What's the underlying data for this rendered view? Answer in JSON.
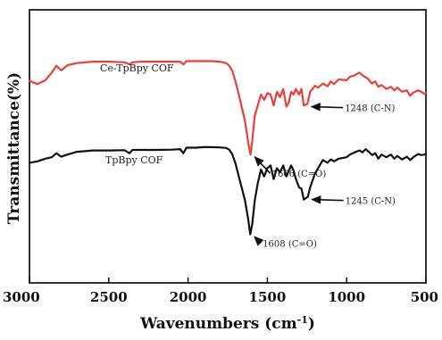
{
  "chart_data": {
    "type": "line",
    "xlabel": "Wavenumbers (cm",
    "xlabel_sup": "-1",
    "xlabel_close": ")",
    "ylabel": "Transmittance(%)",
    "xlim": [
      3000,
      500
    ],
    "x_reversed": true,
    "xticks": [
      3000,
      2500,
      2000,
      1500,
      1000,
      500
    ],
    "y_ticks_shown": false,
    "grid": false,
    "series": [
      {
        "name": "Ce-TpBpy COF",
        "color": "#e8413a",
        "points": [
          [
            3000,
            0.74
          ],
          [
            2950,
            0.728
          ],
          [
            2900,
            0.742
          ],
          [
            2860,
            0.77
          ],
          [
            2830,
            0.795
          ],
          [
            2800,
            0.778
          ],
          [
            2760,
            0.797
          ],
          [
            2700,
            0.805
          ],
          [
            2600,
            0.81
          ],
          [
            2500,
            0.81
          ],
          [
            2400,
            0.808
          ],
          [
            2370,
            0.8
          ],
          [
            2350,
            0.808
          ],
          [
            2300,
            0.81
          ],
          [
            2200,
            0.81
          ],
          [
            2100,
            0.81
          ],
          [
            2050,
            0.81
          ],
          [
            2030,
            0.8
          ],
          [
            2010,
            0.812
          ],
          [
            1950,
            0.812
          ],
          [
            1900,
            0.812
          ],
          [
            1850,
            0.812
          ],
          [
            1800,
            0.81
          ],
          [
            1760,
            0.805
          ],
          [
            1740,
            0.795
          ],
          [
            1720,
            0.775
          ],
          [
            1700,
            0.735
          ],
          [
            1680,
            0.69
          ],
          [
            1660,
            0.64
          ],
          [
            1640,
            0.59
          ],
          [
            1620,
            0.51
          ],
          [
            1606,
            0.47
          ],
          [
            1595,
            0.52
          ],
          [
            1580,
            0.61
          ],
          [
            1560,
            0.65
          ],
          [
            1540,
            0.69
          ],
          [
            1520,
            0.67
          ],
          [
            1500,
            0.695
          ],
          [
            1480,
            0.69
          ],
          [
            1460,
            0.65
          ],
          [
            1440,
            0.7
          ],
          [
            1420,
            0.68
          ],
          [
            1400,
            0.71
          ],
          [
            1380,
            0.645
          ],
          [
            1365,
            0.66
          ],
          [
            1350,
            0.7
          ],
          [
            1335,
            0.69
          ],
          [
            1320,
            0.71
          ],
          [
            1300,
            0.69
          ],
          [
            1285,
            0.71
          ],
          [
            1270,
            0.65
          ],
          [
            1248,
            0.655
          ],
          [
            1230,
            0.7
          ],
          [
            1200,
            0.722
          ],
          [
            1180,
            0.715
          ],
          [
            1150,
            0.73
          ],
          [
            1120,
            0.72
          ],
          [
            1100,
            0.738
          ],
          [
            1080,
            0.728
          ],
          [
            1050,
            0.745
          ],
          [
            1000,
            0.742
          ],
          [
            980,
            0.755
          ],
          [
            950,
            0.76
          ],
          [
            920,
            0.77
          ],
          [
            900,
            0.76
          ],
          [
            870,
            0.75
          ],
          [
            840,
            0.73
          ],
          [
            820,
            0.738
          ],
          [
            800,
            0.718
          ],
          [
            780,
            0.725
          ],
          [
            750,
            0.71
          ],
          [
            720,
            0.718
          ],
          [
            700,
            0.705
          ],
          [
            680,
            0.715
          ],
          [
            650,
            0.7
          ],
          [
            620,
            0.705
          ],
          [
            600,
            0.685
          ],
          [
            580,
            0.697
          ],
          [
            550,
            0.705
          ],
          [
            530,
            0.7
          ],
          [
            510,
            0.692
          ],
          [
            500,
            0.695
          ]
        ]
      },
      {
        "name": "TpBpy COF",
        "color": "#111111",
        "points": [
          [
            3000,
            0.44
          ],
          [
            2950,
            0.445
          ],
          [
            2900,
            0.455
          ],
          [
            2860,
            0.46
          ],
          [
            2830,
            0.475
          ],
          [
            2800,
            0.462
          ],
          [
            2760,
            0.47
          ],
          [
            2700,
            0.48
          ],
          [
            2600,
            0.485
          ],
          [
            2500,
            0.485
          ],
          [
            2400,
            0.486
          ],
          [
            2370,
            0.475
          ],
          [
            2350,
            0.487
          ],
          [
            2300,
            0.487
          ],
          [
            2200,
            0.487
          ],
          [
            2100,
            0.488
          ],
          [
            2050,
            0.49
          ],
          [
            2030,
            0.475
          ],
          [
            2010,
            0.495
          ],
          [
            1950,
            0.495
          ],
          [
            1900,
            0.497
          ],
          [
            1850,
            0.497
          ],
          [
            1800,
            0.496
          ],
          [
            1760,
            0.494
          ],
          [
            1740,
            0.488
          ],
          [
            1720,
            0.47
          ],
          [
            1700,
            0.435
          ],
          [
            1680,
            0.39
          ],
          [
            1660,
            0.345
          ],
          [
            1640,
            0.3
          ],
          [
            1620,
            0.23
          ],
          [
            1608,
            0.178
          ],
          [
            1595,
            0.215
          ],
          [
            1580,
            0.3
          ],
          [
            1560,
            0.365
          ],
          [
            1540,
            0.415
          ],
          [
            1520,
            0.39
          ],
          [
            1500,
            0.42
          ],
          [
            1480,
            0.43
          ],
          [
            1460,
            0.38
          ],
          [
            1440,
            0.42
          ],
          [
            1420,
            0.405
          ],
          [
            1400,
            0.43
          ],
          [
            1380,
            0.39
          ],
          [
            1365,
            0.41
          ],
          [
            1350,
            0.43
          ],
          [
            1335,
            0.412
          ],
          [
            1320,
            0.38
          ],
          [
            1300,
            0.35
          ],
          [
            1285,
            0.345
          ],
          [
            1270,
            0.305
          ],
          [
            1245,
            0.315
          ],
          [
            1230,
            0.35
          ],
          [
            1200,
            0.4
          ],
          [
            1180,
            0.42
          ],
          [
            1150,
            0.45
          ],
          [
            1120,
            0.44
          ],
          [
            1100,
            0.452
          ],
          [
            1080,
            0.445
          ],
          [
            1050,
            0.455
          ],
          [
            1000,
            0.46
          ],
          [
            980,
            0.47
          ],
          [
            950,
            0.478
          ],
          [
            920,
            0.485
          ],
          [
            900,
            0.478
          ],
          [
            880,
            0.49
          ],
          [
            860,
            0.48
          ],
          [
            840,
            0.468
          ],
          [
            820,
            0.475
          ],
          [
            800,
            0.455
          ],
          [
            780,
            0.47
          ],
          [
            750,
            0.46
          ],
          [
            720,
            0.47
          ],
          [
            700,
            0.455
          ],
          [
            680,
            0.465
          ],
          [
            650,
            0.452
          ],
          [
            620,
            0.462
          ],
          [
            600,
            0.45
          ],
          [
            580,
            0.46
          ],
          [
            550,
            0.472
          ],
          [
            530,
            0.468
          ],
          [
            510,
            0.47
          ],
          [
            500,
            0.472
          ]
        ]
      }
    ],
    "annotations": [
      {
        "text": "1606 (C=O)",
        "x": 1606,
        "y": 0.47
      },
      {
        "text": "1248 (C-N)",
        "x": 1248,
        "y": 0.655
      },
      {
        "text": "1608 (C=O)",
        "x": 1608,
        "y": 0.178
      },
      {
        "text": "1245 (C-N)",
        "x": 1245,
        "y": 0.315
      }
    ]
  }
}
